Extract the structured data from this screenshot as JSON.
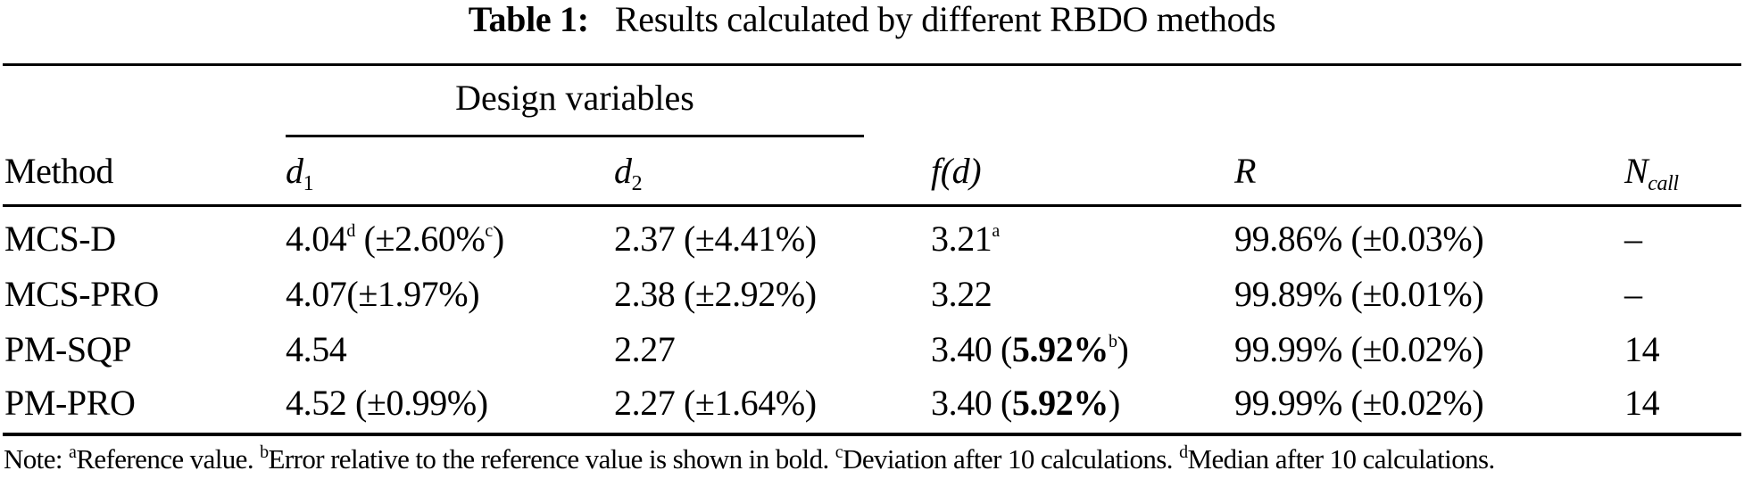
{
  "caption": {
    "label": "Table 1:",
    "text": "Results calculated by different RBDO methods"
  },
  "table": {
    "group_header": "Design variables",
    "headers": {
      "method": "Method",
      "d1_base": "d",
      "d1_sub": "1",
      "d2_base": "d",
      "d2_sub": "2",
      "f": "f(d)",
      "r": "R",
      "n_base": "N",
      "n_sub": "call"
    },
    "rows": [
      {
        "method": "MCS-D",
        "d1": {
          "value": "4.04",
          "value_sup": "d",
          "dev_open": " (±2.60%",
          "dev_sup": "c",
          "dev_close": ")"
        },
        "d2": "2.37 (±4.41%)",
        "f": {
          "value": "3.21",
          "sup": "a"
        },
        "r": "99.86% (±0.03%)",
        "n": "–"
      },
      {
        "method": "MCS-PRO",
        "d1": {
          "value": "4.07(±1.97%)"
        },
        "d2": "2.38 (±2.92%)",
        "f": {
          "value": "3.22"
        },
        "r": "99.89% (±0.01%)",
        "n": "–"
      },
      {
        "method": "PM-SQP",
        "d1": {
          "value": "4.54"
        },
        "d2": "2.27",
        "f": {
          "value": "3.40 (",
          "bold": "5.92%",
          "sup": "b",
          "close": ")"
        },
        "r": "99.99% (±0.02%)",
        "n": "14"
      },
      {
        "method": "PM-PRO",
        "d1": {
          "value": "4.52 (±0.99%)"
        },
        "d2": "2.27 (±1.64%)",
        "f": {
          "value": "3.40 (",
          "bold": "5.92%",
          "close": ")"
        },
        "r": "99.99% (±0.02%)",
        "n": "14"
      }
    ]
  },
  "note": {
    "prefix": "Note: ",
    "items": [
      {
        "mark": "a",
        "text": "Reference value. "
      },
      {
        "mark": "b",
        "text": "Error relative to the reference value is shown in bold. "
      },
      {
        "mark": "c",
        "text": "Deviation after 10 calculations. "
      },
      {
        "mark": "d",
        "text": "Median after 10 calculations."
      }
    ]
  }
}
